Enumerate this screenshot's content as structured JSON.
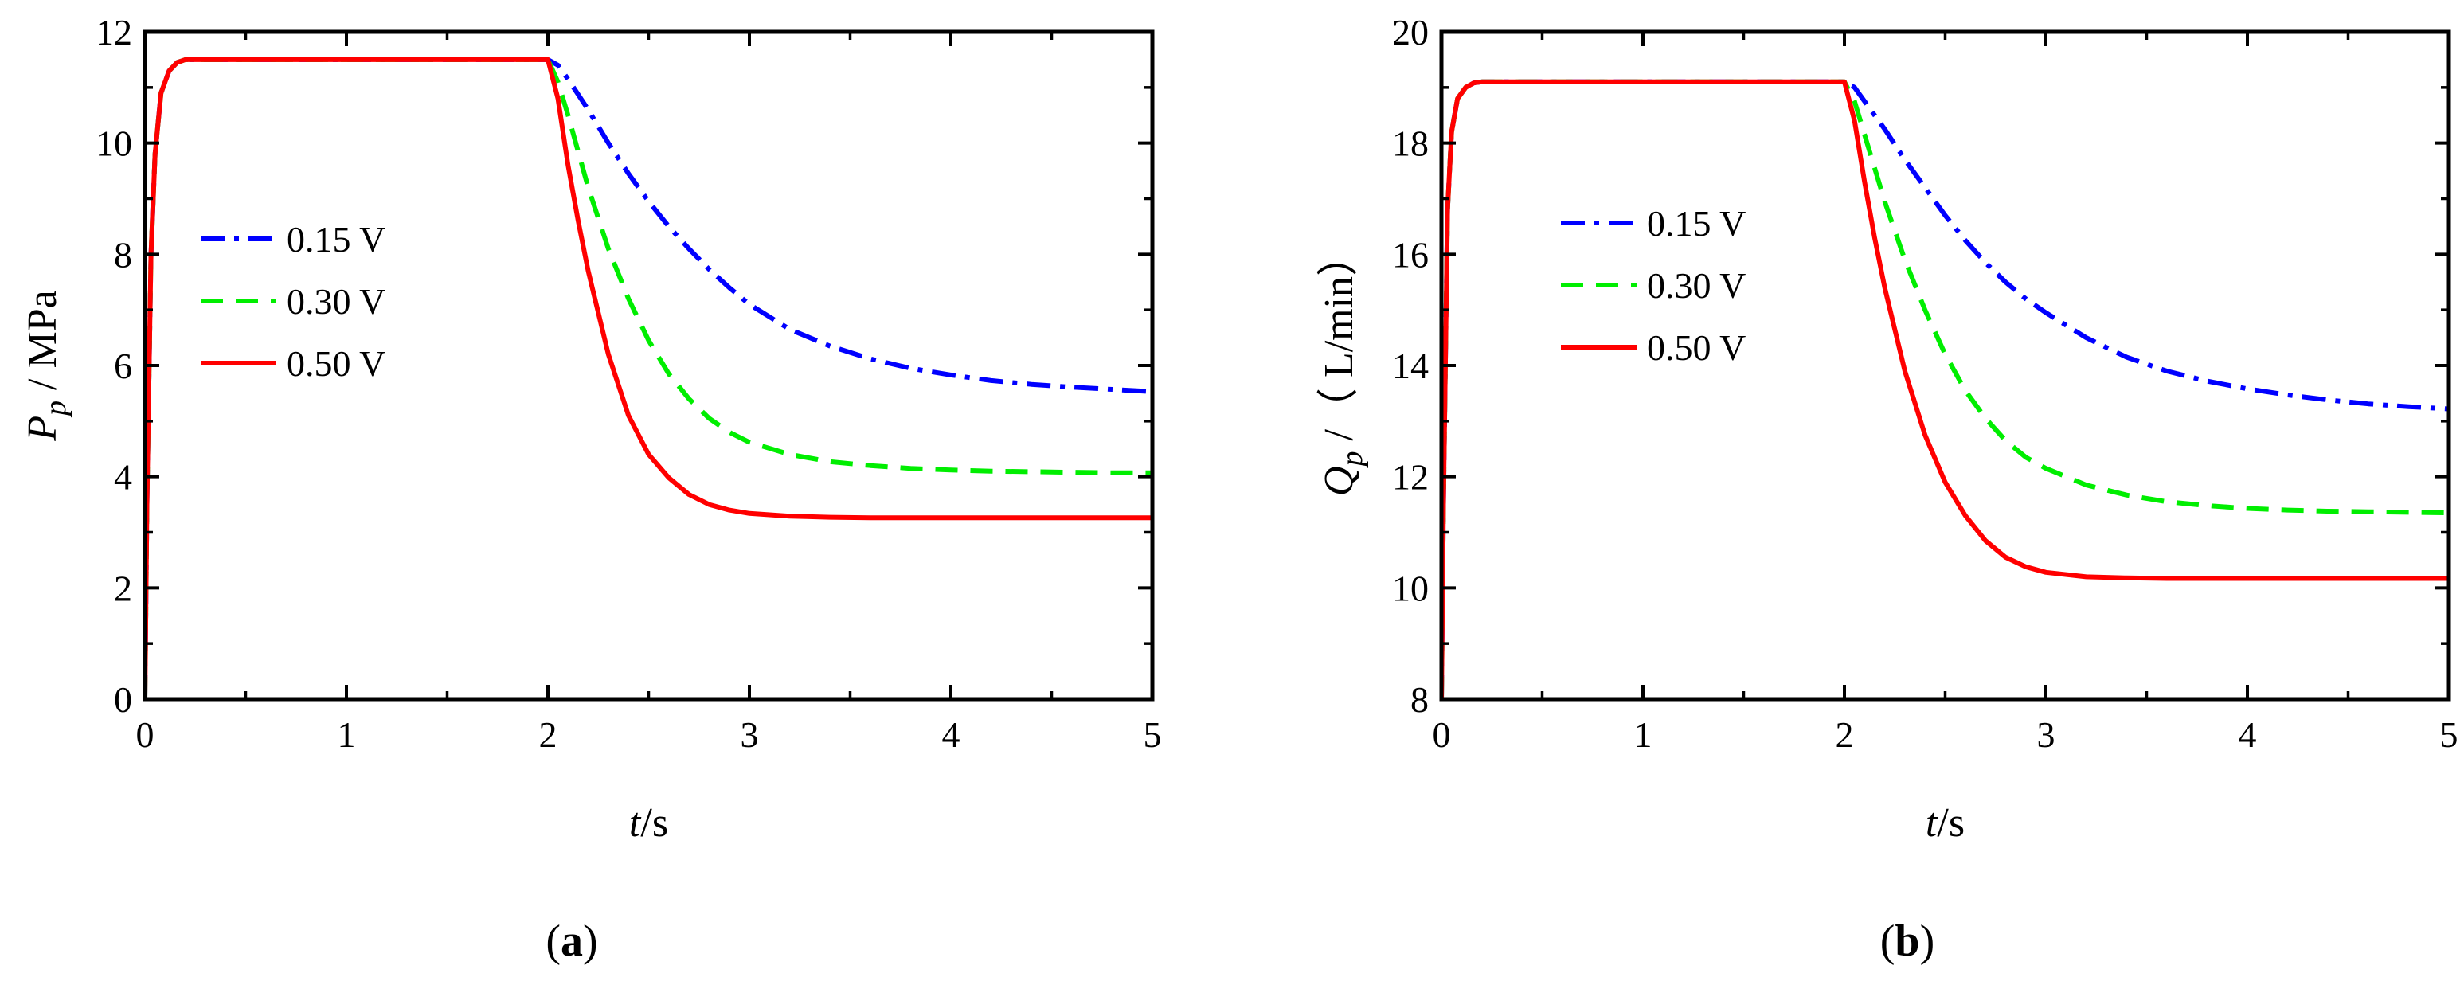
{
  "chart_data": [
    {
      "type": "line",
      "panel_label": {
        "open": "(",
        "letter": "a",
        "close": ")"
      },
      "xlabel": {
        "var": "t",
        "unit": "/s"
      },
      "ylabel": {
        "var": "P",
        "sub": "p",
        "unit": " / MPa"
      },
      "xlim": [
        0,
        5
      ],
      "ylim": [
        0,
        12
      ],
      "xticks": [
        0,
        1,
        2,
        3,
        4,
        5
      ],
      "xtick_labels": [
        "0",
        "1",
        "2",
        "3",
        "4",
        "5"
      ],
      "yticks": [
        0,
        2,
        4,
        6,
        8,
        10,
        12
      ],
      "ytick_labels": [
        "0",
        "2",
        "4",
        "6",
        "8",
        "10",
        "12"
      ],
      "legend_placement": "upper-left",
      "grid": false,
      "series": [
        {
          "name": "0.15 V",
          "color": "#0000ff",
          "dash": "dashdot",
          "x": [
            0,
            0.01,
            0.03,
            0.05,
            0.08,
            0.12,
            0.16,
            0.2,
            0.25,
            2.0,
            2.05,
            2.1,
            2.2,
            2.3,
            2.4,
            2.5,
            2.6,
            2.7,
            2.8,
            2.9,
            3.0,
            3.2,
            3.4,
            3.6,
            3.8,
            4.0,
            4.2,
            4.4,
            4.6,
            4.8,
            5.0
          ],
          "y": [
            0,
            3.5,
            8.0,
            9.8,
            10.9,
            11.3,
            11.45,
            11.5,
            11.5,
            11.5,
            11.4,
            11.15,
            10.6,
            10.0,
            9.45,
            8.95,
            8.5,
            8.1,
            7.73,
            7.4,
            7.1,
            6.65,
            6.35,
            6.12,
            5.95,
            5.83,
            5.73,
            5.66,
            5.61,
            5.57,
            5.53
          ]
        },
        {
          "name": "0.30 V",
          "color": "#00ee00",
          "dash": "dashed",
          "x": [
            0,
            0.01,
            0.03,
            0.05,
            0.08,
            0.12,
            0.16,
            0.2,
            0.25,
            2.0,
            2.05,
            2.1,
            2.2,
            2.3,
            2.4,
            2.5,
            2.6,
            2.7,
            2.8,
            2.9,
            3.0,
            3.2,
            3.4,
            3.6,
            3.8,
            4.0,
            4.2,
            4.4,
            4.6,
            4.8,
            5.0
          ],
          "y": [
            0,
            3.5,
            8.0,
            9.8,
            10.9,
            11.3,
            11.45,
            11.5,
            11.5,
            11.5,
            11.1,
            10.5,
            9.2,
            8.1,
            7.2,
            6.45,
            5.85,
            5.4,
            5.05,
            4.8,
            4.62,
            4.4,
            4.27,
            4.2,
            4.15,
            4.12,
            4.1,
            4.09,
            4.08,
            4.07,
            4.07
          ]
        },
        {
          "name": "0.50 V",
          "color": "#ff0000",
          "dash": "solid",
          "x": [
            0,
            0.01,
            0.03,
            0.05,
            0.08,
            0.12,
            0.16,
            0.2,
            0.25,
            2.0,
            2.05,
            2.1,
            2.15,
            2.2,
            2.3,
            2.4,
            2.5,
            2.6,
            2.7,
            2.8,
            2.9,
            3.0,
            3.2,
            3.4,
            3.6,
            3.8,
            4.0,
            4.5,
            5.0
          ],
          "y": [
            0,
            3.5,
            8.0,
            9.8,
            10.9,
            11.3,
            11.45,
            11.5,
            11.5,
            11.5,
            10.8,
            9.6,
            8.6,
            7.7,
            6.2,
            5.1,
            4.4,
            3.98,
            3.68,
            3.5,
            3.4,
            3.34,
            3.29,
            3.27,
            3.26,
            3.26,
            3.26,
            3.26,
            3.26
          ]
        }
      ]
    },
    {
      "type": "line",
      "panel_label": {
        "open": "(",
        "letter": "b",
        "close": ")"
      },
      "xlabel": {
        "var": "t",
        "unit": "/s"
      },
      "ylabel": {
        "var": "Q",
        "sub": "p",
        "unit": " /（ L/min）"
      },
      "xlim": [
        0,
        5
      ],
      "ylim": [
        8,
        20
      ],
      "xticks": [
        0,
        1,
        2,
        3,
        4,
        5
      ],
      "xtick_labels": [
        "0",
        "1",
        "2",
        "3",
        "4",
        "5"
      ],
      "yticks": [
        8,
        10,
        12,
        14,
        16,
        18,
        20
      ],
      "ytick_labels": [
        "8",
        "10",
        "12",
        "14",
        "16",
        "18",
        "20"
      ],
      "legend_placement": "upper-left",
      "grid": false,
      "series": [
        {
          "name": "0.15 V",
          "color": "#0000ff",
          "dash": "dashdot",
          "x": [
            0,
            0.01,
            0.03,
            0.05,
            0.08,
            0.12,
            0.16,
            0.2,
            0.25,
            2.0,
            2.05,
            2.1,
            2.2,
            2.3,
            2.4,
            2.5,
            2.6,
            2.7,
            2.8,
            2.9,
            3.0,
            3.2,
            3.4,
            3.6,
            3.8,
            4.0,
            4.2,
            4.4,
            4.6,
            4.8,
            5.0
          ],
          "y": [
            8,
            11.5,
            16.8,
            18.2,
            18.8,
            19.0,
            19.08,
            19.1,
            19.1,
            19.1,
            19.0,
            18.75,
            18.25,
            17.7,
            17.2,
            16.7,
            16.25,
            15.85,
            15.5,
            15.2,
            14.95,
            14.5,
            14.15,
            13.9,
            13.72,
            13.58,
            13.47,
            13.38,
            13.31,
            13.26,
            13.22
          ]
        },
        {
          "name": "0.30 V",
          "color": "#00ee00",
          "dash": "dashed",
          "x": [
            0,
            0.01,
            0.03,
            0.05,
            0.08,
            0.12,
            0.16,
            0.2,
            0.25,
            2.0,
            2.05,
            2.1,
            2.2,
            2.3,
            2.4,
            2.5,
            2.6,
            2.7,
            2.8,
            2.9,
            3.0,
            3.2,
            3.4,
            3.6,
            3.8,
            4.0,
            4.2,
            4.4,
            4.6,
            4.8,
            5.0
          ],
          "y": [
            8,
            11.5,
            16.8,
            18.2,
            18.8,
            19.0,
            19.08,
            19.1,
            19.1,
            19.1,
            18.75,
            18.15,
            16.95,
            15.9,
            15.0,
            14.2,
            13.55,
            13.05,
            12.65,
            12.35,
            12.15,
            11.85,
            11.67,
            11.55,
            11.48,
            11.43,
            11.4,
            11.38,
            11.37,
            11.36,
            11.35
          ]
        },
        {
          "name": "0.50 V",
          "color": "#ff0000",
          "dash": "solid",
          "x": [
            0,
            0.01,
            0.03,
            0.05,
            0.08,
            0.12,
            0.16,
            0.2,
            0.25,
            2.0,
            2.05,
            2.1,
            2.15,
            2.2,
            2.3,
            2.4,
            2.5,
            2.6,
            2.7,
            2.8,
            2.9,
            3.0,
            3.2,
            3.4,
            3.6,
            3.8,
            4.0,
            4.5,
            5.0
          ],
          "y": [
            8,
            11.5,
            16.8,
            18.2,
            18.8,
            19.0,
            19.08,
            19.1,
            19.1,
            19.1,
            18.4,
            17.3,
            16.3,
            15.4,
            13.9,
            12.75,
            11.9,
            11.3,
            10.85,
            10.55,
            10.38,
            10.28,
            10.2,
            10.18,
            10.17,
            10.17,
            10.17,
            10.17,
            10.17
          ]
        }
      ]
    }
  ]
}
